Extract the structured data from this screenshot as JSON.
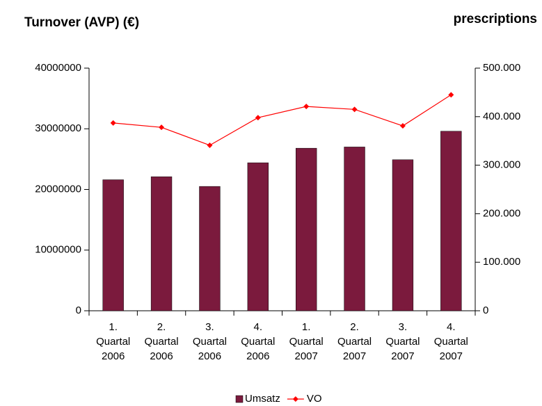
{
  "chart_data": {
    "type": "bar-line",
    "title": "Turnover (AVP) (€)",
    "y2_title": "prescriptions",
    "categories": [
      "1. Quartal 2006",
      "2. Quartal 2006",
      "3. Quartal 2006",
      "4. Quartal 2006",
      "1. Quartal 2007",
      "2. Quartal 2007",
      "3. Quartal 2007",
      "4. Quartal 2007"
    ],
    "series": [
      {
        "name": "Umsatz",
        "type": "bar",
        "color": "#7b1a3d",
        "values": [
          21600000,
          22100000,
          20500000,
          24400000,
          26800000,
          27000000,
          24900000,
          29600000
        ]
      },
      {
        "name": "VO",
        "type": "line",
        "axis": "y2",
        "color": "#ff0000",
        "values": [
          387000,
          378000,
          341000,
          398000,
          421000,
          415000,
          381000,
          445000
        ]
      }
    ],
    "ylim": [
      0,
      40000000
    ],
    "yticks": [
      0,
      10000000,
      20000000,
      30000000,
      40000000
    ],
    "y2lim": [
      0,
      500000
    ],
    "y2ticks": [
      0,
      {
        "value": 100000,
        "label": "100.000"
      },
      {
        "value": 200000,
        "label": "200.000"
      },
      {
        "value": 300000,
        "label": "300.000"
      },
      {
        "value": 400000,
        "label": "400.000"
      },
      {
        "value": 500000,
        "label": "500.000"
      }
    ],
    "legend": "bottom"
  }
}
